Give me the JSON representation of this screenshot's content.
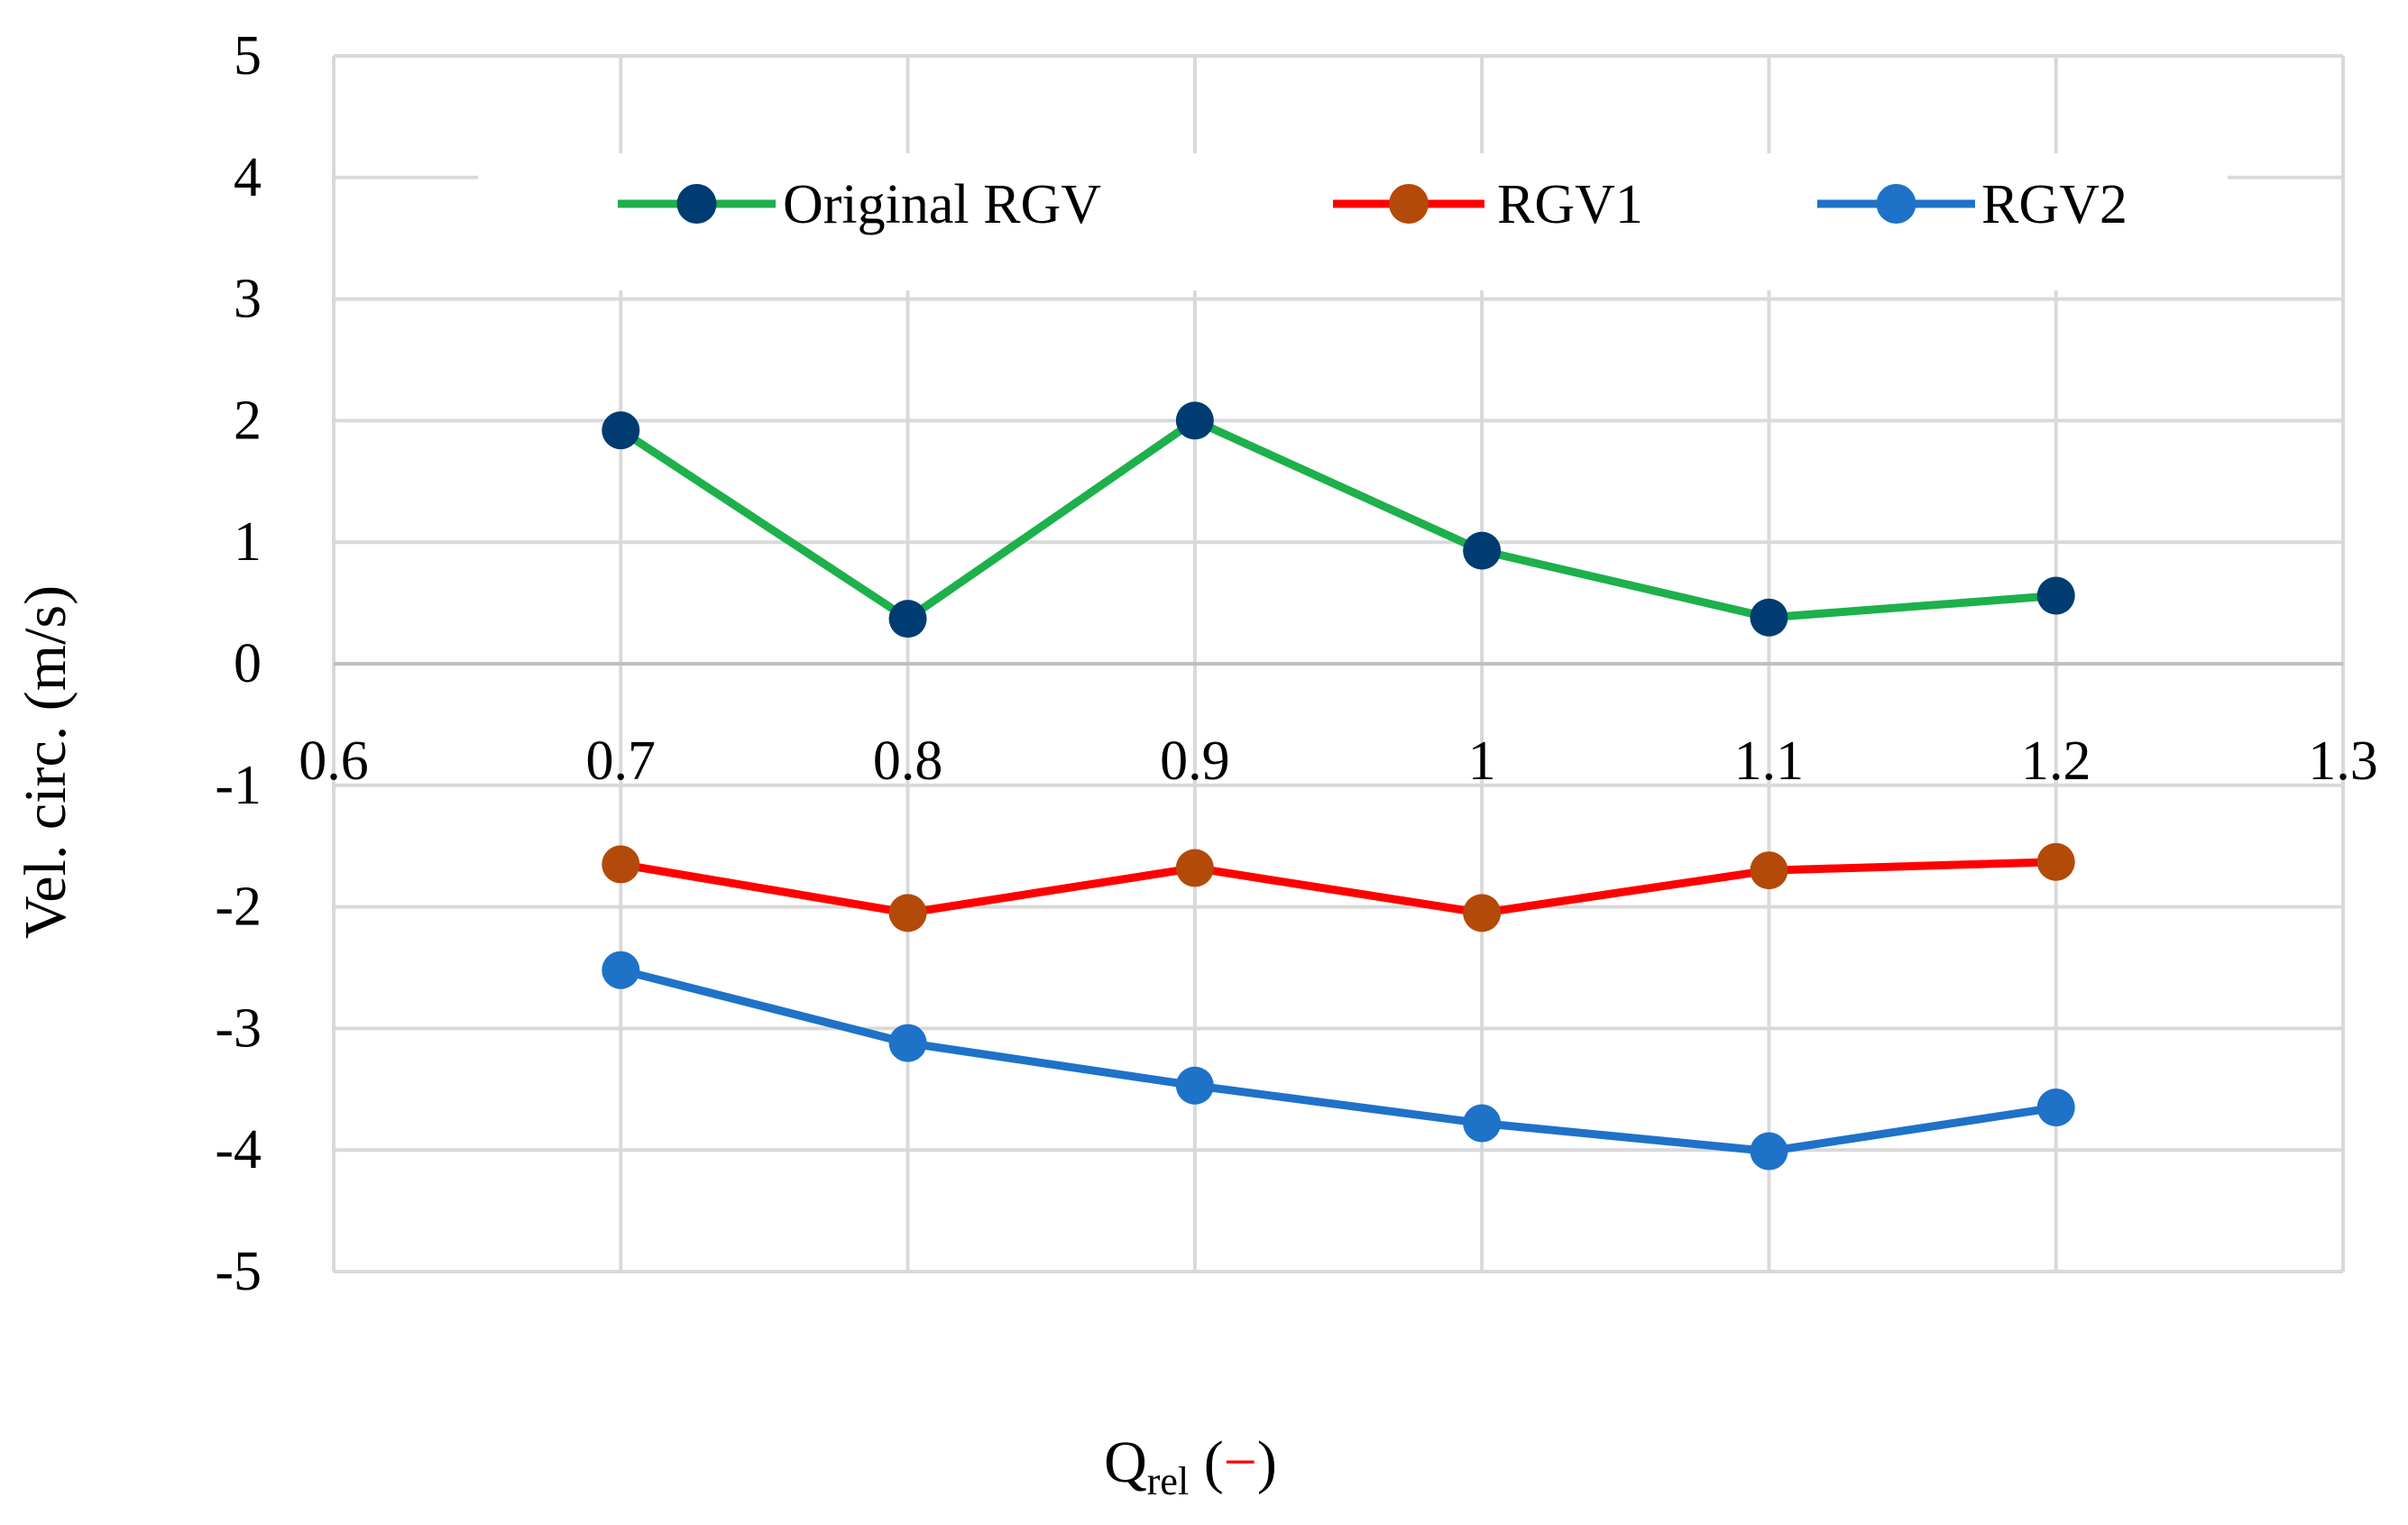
{
  "chart_data": {
    "type": "line",
    "title": "",
    "xlabel_main": "Q",
    "xlabel_sub": "rel",
    "xlabel_open": " (",
    "xlabel_unit": "−",
    "xlabel_close": ")",
    "ylabel": "Vel. circ. (m/s)",
    "xlim": [
      0.6,
      1.3
    ],
    "ylim": [
      -5,
      5
    ],
    "x_ticks": [
      0.6,
      0.7,
      0.8,
      0.9,
      1.0,
      1.1,
      1.2,
      1.3
    ],
    "x_tick_labels": [
      "0.6",
      "0.7",
      "0.8",
      "0.9",
      "1",
      "1.1",
      "1.2",
      "1.3"
    ],
    "y_ticks": [
      -5,
      -4,
      -3,
      -2,
      -1,
      0,
      1,
      2,
      3,
      4,
      5
    ],
    "y_tick_labels": [
      "-5",
      "-4",
      "-3",
      "-2",
      "-1",
      "0",
      "1",
      "2",
      "3",
      "4",
      "5"
    ],
    "grid": true,
    "legend_position": "top",
    "series": [
      {
        "name": "Original RGV",
        "line_color": "#1DB04B",
        "marker_color": "#003C71",
        "x": [
          0.7,
          0.8,
          0.9,
          1.0,
          1.1,
          1.2
        ],
        "values": [
          1.92,
          0.37,
          2.0,
          0.93,
          0.38,
          0.56
        ]
      },
      {
        "name": "RGV1",
        "line_color": "#FF0000",
        "marker_color": "#B34A0A",
        "x": [
          0.7,
          0.8,
          0.9,
          1.0,
          1.1,
          1.2
        ],
        "values": [
          -1.65,
          -2.05,
          -1.68,
          -2.05,
          -1.7,
          -1.63
        ]
      },
      {
        "name": "RGV2",
        "line_color": "#1E72C8",
        "marker_color": "#1E72C8",
        "x": [
          0.7,
          0.8,
          0.9,
          1.0,
          1.1,
          1.2
        ],
        "values": [
          -2.52,
          -3.12,
          -3.47,
          -3.78,
          -4.01,
          -3.65
        ]
      }
    ]
  }
}
